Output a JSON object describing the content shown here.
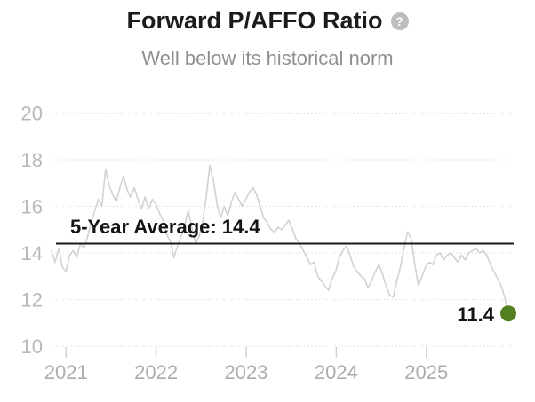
{
  "header": {
    "title": "Forward P/AFFO Ratio",
    "help_glyph": "?",
    "subtitle": "Well below its historical norm"
  },
  "chart_data": {
    "type": "line",
    "title": "Forward P/AFFO Ratio",
    "subtitle": "Well below its historical norm",
    "x_range": [
      2020.84,
      2025.91
    ],
    "x_ticks": [
      "2021",
      "2022",
      "2023",
      "2024",
      "2025"
    ],
    "y_ticks": [
      10,
      12,
      14,
      16,
      18,
      20
    ],
    "ylim": [
      10,
      20
    ],
    "grid": "dotted-horizontal",
    "legend": "none",
    "series": [
      {
        "name": "Forward P/AFFO",
        "values": [
          14.1,
          13.6,
          14.2,
          13.4,
          13.2,
          13.9,
          14.1,
          13.8,
          14.4,
          14.2,
          14.7,
          15.3,
          15.8,
          16.3,
          16.0,
          17.6,
          16.9,
          16.5,
          16.2,
          16.8,
          17.3,
          16.7,
          16.4,
          16.8,
          16.3,
          15.9,
          16.4,
          15.9,
          16.3,
          16.1,
          15.7,
          15.4,
          14.8,
          14.5,
          13.8,
          14.3,
          14.7,
          15.2,
          15.8,
          15.1,
          14.4,
          14.7,
          15.3,
          16.4,
          17.75,
          17.1,
          16.1,
          15.5,
          16.0,
          15.6,
          16.2,
          16.6,
          16.3,
          16.0,
          16.3,
          16.6,
          16.8,
          16.5,
          16.0,
          15.5,
          15.3,
          15.0,
          14.9,
          15.1,
          15.0,
          15.2,
          15.4,
          15.0,
          14.6,
          14.4,
          14.1,
          13.8,
          13.5,
          13.6,
          13.0,
          12.8,
          12.6,
          12.4,
          12.9,
          13.2,
          13.8,
          14.1,
          14.3,
          13.9,
          13.4,
          13.2,
          13.0,
          12.9,
          12.5,
          12.8,
          13.2,
          13.5,
          13.1,
          12.6,
          12.2,
          12.1,
          12.8,
          13.4,
          14.2,
          14.9,
          14.6,
          13.5,
          12.6,
          13.0,
          13.4,
          13.6,
          13.5,
          13.9,
          14.0,
          13.7,
          13.9,
          14.0,
          13.8,
          13.6,
          13.9,
          13.7,
          14.0,
          14.1,
          14.2,
          14.0,
          14.1,
          13.9,
          13.5,
          13.2,
          12.9,
          12.6,
          12.1,
          11.4
        ]
      }
    ],
    "average_line": {
      "value": 14.4,
      "label": "5-Year Average: 14.4"
    },
    "last_point": {
      "value": 11.4,
      "label": "11.4"
    },
    "colors": {
      "series_line": "#d2d2d2",
      "average_line": "#1a1a1a",
      "last_point_dot": "#527f1f",
      "gridline": "#dcdcdc",
      "tick_mark": "#d2d2d2",
      "y_axis_label": "#b9b9b9",
      "x_axis_label": "#adadad"
    }
  }
}
